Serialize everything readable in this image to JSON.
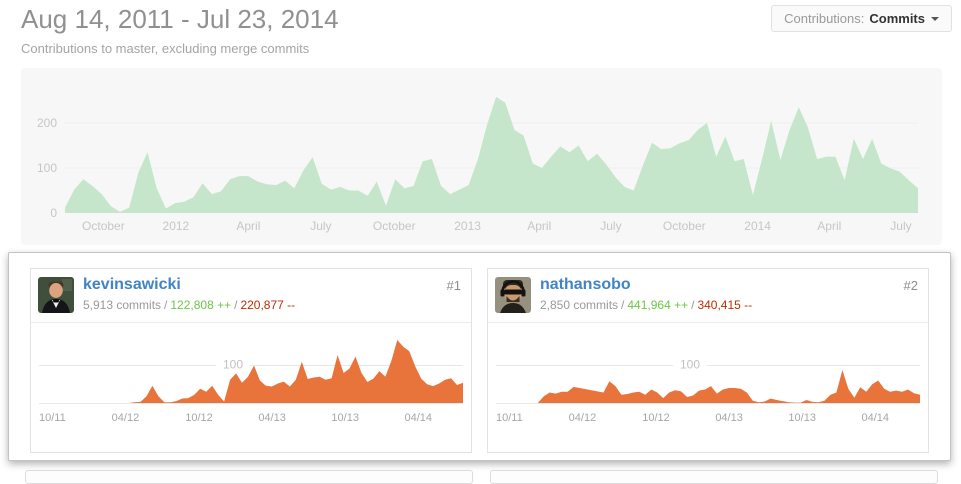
{
  "header": {
    "title": "Aug 14, 2011 - Jul 23, 2014",
    "subtitle": "Contributions to master, excluding merge commits",
    "filter_label": "Contributions:",
    "filter_value": "Commits"
  },
  "colors": {
    "main_area": "#c5e6cb",
    "main_panel_bg": "#f7f7f7",
    "contrib_area": "#e8743c",
    "link_blue": "#4183c4",
    "additions_green": "#6cc644",
    "deletions_red": "#bd2c00",
    "axis_label_gray": "#c6c6c6",
    "grid_line_gray": "#e7e7e7"
  },
  "contributors": [
    {
      "rank": "#1",
      "username": "kevinsawicki",
      "commits": "5,913 commits",
      "separator": "/",
      "additions": "122,808 ++",
      "deletions": "220,877 --"
    },
    {
      "rank": "#2",
      "username": "nathansobo",
      "commits": "2,850 commits",
      "separator": "/",
      "additions": "441,964 ++",
      "deletions": "340,415 --"
    }
  ],
  "chart_data": [
    {
      "name": "main-contributions",
      "type": "area",
      "title": "Commits to master per week, Aug 14 2011 - Jul 23 2014",
      "color": "#c5e6cb",
      "ylim": [
        0,
        320
      ],
      "y_ticks": [
        {
          "v": 0,
          "label": "0"
        },
        {
          "v": 100,
          "label": "100"
        },
        {
          "v": 200,
          "label": "200"
        }
      ],
      "x_ticks": [
        {
          "label": "October",
          "f": 0.045
        },
        {
          "label": "2012",
          "f": 0.13
        },
        {
          "label": "April",
          "f": 0.215
        },
        {
          "label": "July",
          "f": 0.3
        },
        {
          "label": "October",
          "f": 0.386
        },
        {
          "label": "2013",
          "f": 0.472
        },
        {
          "label": "April",
          "f": 0.556
        },
        {
          "label": "July",
          "f": 0.64
        },
        {
          "label": "October",
          "f": 0.726
        },
        {
          "label": "2014",
          "f": 0.812
        },
        {
          "label": "April",
          "f": 0.896
        },
        {
          "label": "July",
          "f": 0.98
        }
      ],
      "values": [
        12,
        52,
        75,
        60,
        42,
        15,
        3,
        12,
        90,
        135,
        55,
        10,
        22,
        25,
        35,
        66,
        42,
        48,
        75,
        82,
        82,
        70,
        64,
        62,
        72,
        55,
        95,
        124,
        65,
        52,
        58,
        50,
        50,
        38,
        70,
        16,
        75,
        55,
        60,
        115,
        120,
        60,
        42,
        52,
        62,
        118,
        195,
        258,
        245,
        185,
        172,
        110,
        100,
        125,
        148,
        135,
        150,
        115,
        132,
        108,
        80,
        58,
        50,
        105,
        156,
        142,
        144,
        155,
        162,
        185,
        200,
        125,
        170,
        115,
        120,
        40,
        120,
        205,
        118,
        185,
        235,
        190,
        120,
        125,
        125,
        73,
        165,
        120,
        165,
        110,
        99,
        92,
        73,
        55
      ]
    },
    {
      "name": "kevinsawicki-commits",
      "type": "area",
      "title": "kevinsawicki commits per week",
      "color": "#e8743c",
      "ylim": [
        0,
        210
      ],
      "y_gridline": {
        "v": 100,
        "label": "100"
      },
      "x_ticks": [
        {
          "label": "10/11",
          "f": 0.045
        },
        {
          "label": "04/12",
          "f": 0.215
        },
        {
          "label": "10/12",
          "f": 0.386
        },
        {
          "label": "04/13",
          "f": 0.556
        },
        {
          "label": "10/13",
          "f": 0.726
        },
        {
          "label": "04/14",
          "f": 0.896
        }
      ],
      "values": [
        0,
        0,
        0,
        0,
        0,
        0,
        0,
        0,
        0,
        0,
        0,
        0,
        0,
        0,
        0,
        0,
        0,
        2,
        3,
        18,
        46,
        18,
        2,
        2,
        5,
        12,
        13,
        22,
        38,
        30,
        46,
        22,
        4,
        62,
        79,
        54,
        70,
        100,
        60,
        46,
        44,
        52,
        57,
        44,
        62,
        110,
        64,
        68,
        70,
        62,
        66,
        128,
        80,
        92,
        124,
        80,
        56,
        65,
        85,
        70,
        112,
        168,
        150,
        138,
        98,
        65,
        50,
        45,
        52,
        62,
        66,
        48,
        54
      ]
    },
    {
      "name": "nathansobo-commits",
      "type": "area",
      "title": "nathansobo commits per week",
      "color": "#e8743c",
      "ylim": [
        0,
        210
      ],
      "y_gridline": {
        "v": 100,
        "label": "100"
      },
      "x_ticks": [
        {
          "label": "10/11",
          "f": 0.045
        },
        {
          "label": "04/12",
          "f": 0.215
        },
        {
          "label": "10/12",
          "f": 0.386
        },
        {
          "label": "04/13",
          "f": 0.556
        },
        {
          "label": "10/13",
          "f": 0.726
        },
        {
          "label": "04/14",
          "f": 0.896
        }
      ],
      "values": [
        0,
        0,
        0,
        0,
        0,
        0,
        0,
        0,
        0,
        18,
        28,
        25,
        30,
        30,
        43,
        40,
        37,
        34,
        31,
        28,
        58,
        45,
        22,
        24,
        28,
        30,
        22,
        36,
        28,
        13,
        28,
        34,
        31,
        16,
        20,
        33,
        36,
        45,
        25,
        36,
        40,
        40,
        38,
        28,
        6,
        2,
        4,
        12,
        8,
        5,
        2,
        1,
        1,
        8,
        3,
        2,
        6,
        22,
        28,
        88,
        38,
        14,
        42,
        30,
        50,
        60,
        38,
        30,
        33,
        30,
        36,
        26,
        22
      ]
    }
  ]
}
